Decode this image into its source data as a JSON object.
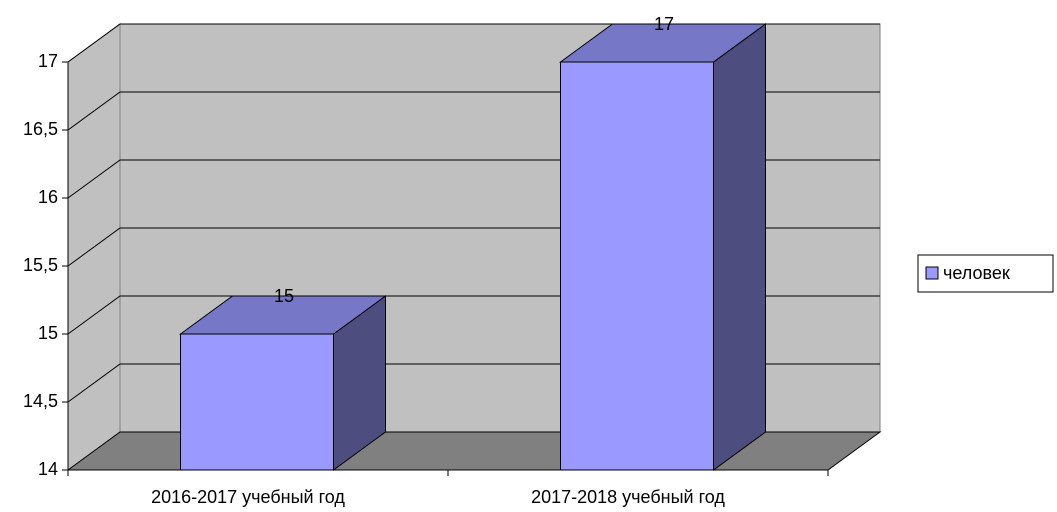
{
  "chart_data": {
    "type": "bar3d",
    "categories": [
      "2016-2017 учебный год",
      "2017-2018 учебный год"
    ],
    "series": [
      {
        "name": "человек",
        "color": "#9999ff",
        "values": [
          15,
          17
        ]
      }
    ],
    "ylim": [
      14,
      17
    ],
    "yticks": [
      14,
      {
        "value": 14.5,
        "label": "14,5"
      },
      15,
      {
        "value": 15.5,
        "label": "15,5"
      },
      16,
      {
        "value": 16.5,
        "label": "16,5"
      },
      17
    ],
    "grid": true,
    "legend": "right"
  }
}
